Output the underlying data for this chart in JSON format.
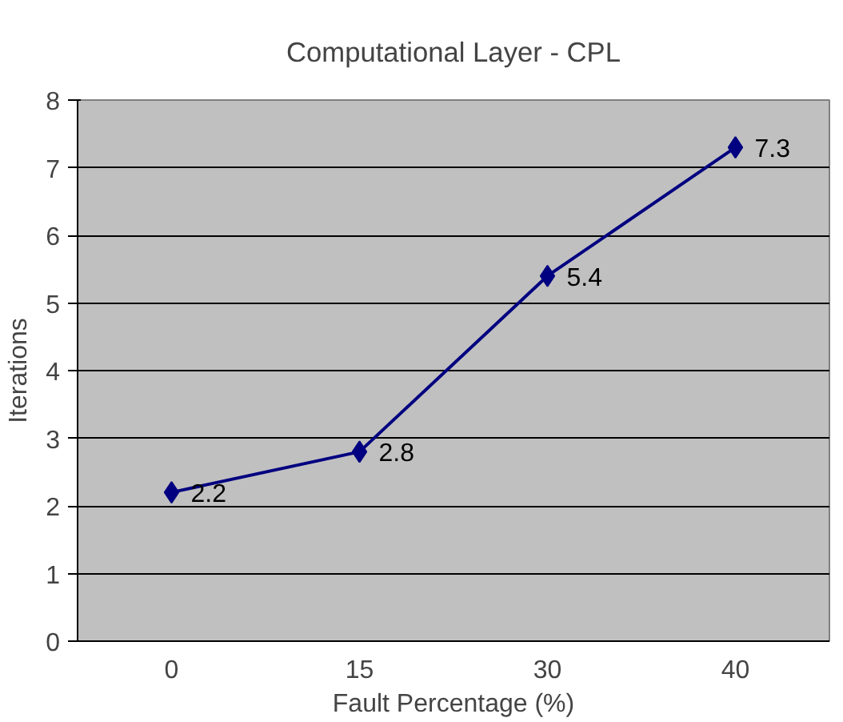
{
  "chart_data": {
    "type": "line",
    "title": "Computational Layer - CPL",
    "xlabel": "Fault Percentage (%)",
    "ylabel": "Iterations",
    "categories": [
      "0",
      "15",
      "30",
      "40"
    ],
    "series": [
      {
        "color": "#000080",
        "values": [
          2.2,
          2.8,
          5.4,
          7.3
        ]
      }
    ],
    "ylim": [
      0,
      8
    ],
    "yticks": [
      0,
      1,
      2,
      3,
      4,
      5,
      6,
      7,
      8
    ],
    "grid": "y",
    "marker": "diamond",
    "line_style": "solid",
    "data_labels": true
  }
}
